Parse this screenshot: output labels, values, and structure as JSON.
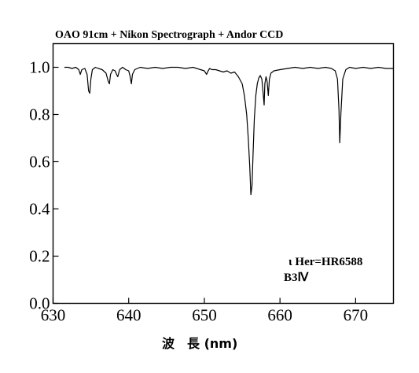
{
  "chart_data": {
    "type": "line",
    "title": "OAO 91cm + Nikon Spectrograph + Andor CCD",
    "xlabel": "波　長 (nm)",
    "ylabel": "",
    "xlim": [
      630,
      675
    ],
    "ylim": [
      0.0,
      1.1
    ],
    "x_ticks": [
      630,
      640,
      650,
      660,
      670
    ],
    "x_tick_labels": [
      "630",
      "640",
      "650",
      "660",
      "670"
    ],
    "y_ticks": [
      0.0,
      0.2,
      0.4,
      0.6,
      0.8,
      1.0
    ],
    "y_tick_labels": [
      "0.0",
      "0.2",
      "0.4",
      "0.6",
      "0.8",
      "1.0"
    ],
    "grid": false,
    "annotations": [
      "ι Her=HR6588",
      "B3Ⅳ"
    ],
    "series": [
      {
        "color": "#000000",
        "x": [
          631.5,
          632.0,
          632.5,
          633.0,
          633.4,
          633.6,
          633.8,
          634.2,
          634.5,
          634.7,
          634.85,
          635.0,
          635.2,
          635.6,
          636.0,
          636.5,
          637.0,
          637.3,
          637.45,
          637.6,
          637.9,
          638.2,
          638.4,
          638.55,
          638.8,
          639.2,
          639.6,
          640.0,
          640.2,
          640.35,
          640.5,
          640.8,
          641.5,
          642.5,
          643.5,
          644.5,
          645.5,
          646.5,
          647.5,
          648.5,
          649.5,
          650.0,
          650.3,
          650.5,
          650.7,
          651.0,
          651.5,
          652.0,
          652.5,
          653.0,
          653.5,
          654.0,
          654.5,
          655.0,
          655.3,
          655.6,
          655.8,
          656.0,
          656.15,
          656.3,
          656.45,
          656.6,
          656.8,
          657.0,
          657.2,
          657.4,
          657.6,
          657.8,
          657.9,
          658.0,
          658.15,
          658.3,
          658.45,
          658.6,
          658.8,
          659.2,
          660.0,
          661.0,
          662.0,
          663.0,
          664.0,
          665.0,
          666.0,
          666.8,
          667.3,
          667.6,
          667.8,
          667.9,
          668.05,
          668.3,
          668.7,
          669.2,
          670.0,
          671.0,
          672.0,
          673.0,
          674.0,
          675.0
        ],
        "y": [
          1.0,
          1.0,
          0.995,
          1.0,
          0.99,
          0.97,
          0.99,
          0.995,
          0.97,
          0.9,
          0.89,
          0.95,
          0.99,
          1.0,
          0.995,
          0.99,
          0.975,
          0.94,
          0.93,
          0.97,
          0.99,
          0.985,
          0.97,
          0.96,
          0.99,
          1.0,
          0.99,
          0.985,
          0.96,
          0.93,
          0.97,
          0.99,
          1.0,
          0.995,
          1.0,
          0.995,
          1.0,
          1.0,
          0.995,
          1.0,
          0.99,
          0.985,
          0.97,
          0.985,
          0.995,
          0.99,
          0.99,
          0.985,
          0.98,
          0.985,
          0.975,
          0.98,
          0.96,
          0.93,
          0.88,
          0.8,
          0.7,
          0.58,
          0.46,
          0.5,
          0.64,
          0.78,
          0.88,
          0.93,
          0.955,
          0.965,
          0.95,
          0.88,
          0.84,
          0.93,
          0.96,
          0.94,
          0.88,
          0.95,
          0.975,
          0.985,
          0.99,
          0.995,
          1.0,
          0.995,
          1.0,
          0.995,
          1.0,
          0.995,
          0.985,
          0.95,
          0.82,
          0.68,
          0.8,
          0.95,
          0.99,
          1.0,
          0.995,
          1.0,
          0.995,
          1.0,
          0.995,
          0.995
        ]
      }
    ]
  }
}
